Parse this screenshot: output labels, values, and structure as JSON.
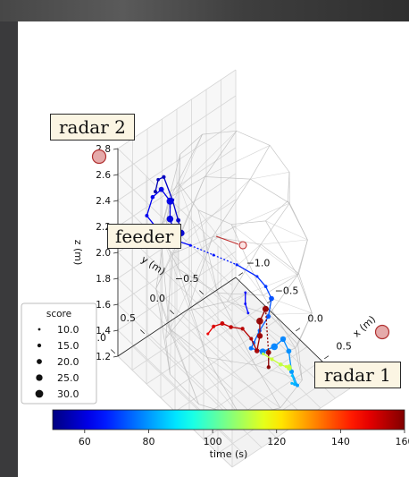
{
  "chart_data": {
    "type": "scatter",
    "projection": "3d",
    "axes": {
      "x": {
        "label": "x (m)",
        "ticks": [
          -1.0,
          -0.5,
          0.0,
          0.5,
          1.0
        ],
        "range": [
          -1.0,
          1.0
        ]
      },
      "y": {
        "label": "y (m)",
        "ticks": [
          -0.5,
          0.0,
          0.5,
          1.0
        ],
        "range": [
          -1.0,
          1.0
        ]
      },
      "z": {
        "label": "z (m)",
        "ticks": [
          1.2,
          1.4,
          1.6,
          1.8,
          2.0,
          2.2,
          2.4,
          2.6,
          2.8
        ],
        "range": [
          1.2,
          2.8
        ]
      }
    },
    "colorbar": {
      "label": "time (s)",
      "ticks": [
        60,
        80,
        100,
        120,
        140,
        160
      ],
      "range": [
        50,
        160
      ],
      "colormap": "jet"
    },
    "size_legend": {
      "title": "score",
      "values": [
        10.0,
        15.0,
        20.0,
        25.0,
        30.0
      ],
      "labels": [
        "10.0",
        "15.0",
        "20.0",
        "25.0",
        "30.0"
      ]
    },
    "callouts": {
      "radar1": "radar 1",
      "radar2": "radar 2",
      "feeder": "feeder"
    },
    "trajectories": [
      {
        "points": [
          {
            "x": -0.55,
            "y": 0.8,
            "z": 2.6,
            "t": 55,
            "score": 14
          },
          {
            "x": -0.45,
            "y": 0.85,
            "z": 2.75,
            "t": 56,
            "score": 13
          },
          {
            "x": -0.3,
            "y": 0.9,
            "z": 2.85,
            "t": 57,
            "score": 15
          },
          {
            "x": -0.2,
            "y": 0.85,
            "z": 2.7,
            "t": 58,
            "score": 14
          },
          {
            "x": -0.15,
            "y": 0.8,
            "z": 2.55,
            "t": 58,
            "score": 17
          },
          {
            "x": -0.2,
            "y": 0.7,
            "z": 2.4,
            "t": 59,
            "score": 25
          },
          {
            "x": -0.35,
            "y": 0.65,
            "z": 2.3,
            "t": 60,
            "score": 28
          },
          {
            "x": -0.5,
            "y": 0.6,
            "z": 2.35,
            "t": 60,
            "score": 26
          },
          {
            "x": -0.55,
            "y": 0.55,
            "z": 2.45,
            "t": 61,
            "score": 27
          },
          {
            "x": -0.6,
            "y": 0.65,
            "z": 2.55,
            "t": 61,
            "score": 20
          },
          {
            "x": -0.65,
            "y": 0.75,
            "z": 2.5,
            "t": 62,
            "score": 16
          },
          {
            "x": -0.7,
            "y": 0.8,
            "z": 2.35,
            "t": 62,
            "score": 14
          },
          {
            "x": -0.6,
            "y": 0.7,
            "z": 2.25,
            "t": 63,
            "score": 12
          },
          {
            "x": -0.5,
            "y": 0.6,
            "z": 2.2,
            "t": 64,
            "score": 11
          },
          {
            "x": -0.35,
            "y": 0.4,
            "z": 2.15,
            "t": 65,
            "score": 11
          },
          {
            "x": -0.15,
            "y": 0.2,
            "z": 2.1,
            "t": 66,
            "score": 11
          },
          {
            "x": 0.05,
            "y": 0.0,
            "z": 2.05,
            "t": 67,
            "score": 11
          },
          {
            "x": 0.25,
            "y": -0.15,
            "z": 2.0,
            "t": 68,
            "score": 11
          },
          {
            "x": 0.35,
            "y": -0.2,
            "z": 1.95,
            "t": 70,
            "score": 13
          },
          {
            "x": 0.45,
            "y": -0.2,
            "z": 1.9,
            "t": 72,
            "score": 20
          },
          {
            "x": 0.55,
            "y": -0.05,
            "z": 1.85,
            "t": 73,
            "score": 18
          },
          {
            "x": 0.5,
            "y": 0.05,
            "z": 1.75,
            "t": 74,
            "score": 15
          },
          {
            "x": 0.45,
            "y": 0.1,
            "z": 1.65,
            "t": 75,
            "score": 14
          },
          {
            "x": 0.35,
            "y": 0.05,
            "z": 1.55,
            "t": 76,
            "score": 17
          },
          {
            "x": 0.4,
            "y": -0.1,
            "z": 1.5,
            "t": 77,
            "score": 24
          },
          {
            "x": 0.5,
            "y": -0.2,
            "z": 1.55,
            "t": 78,
            "score": 26
          },
          {
            "x": 0.55,
            "y": -0.3,
            "z": 1.6,
            "t": 78,
            "score": 22
          },
          {
            "x": 0.65,
            "y": -0.3,
            "z": 1.55,
            "t": 79,
            "score": 20
          },
          {
            "x": 0.75,
            "y": -0.25,
            "z": 1.45,
            "t": 80,
            "score": 18
          },
          {
            "x": 0.8,
            "y": -0.3,
            "z": 1.35,
            "t": 81,
            "score": 14
          },
          {
            "x": 0.7,
            "y": -0.35,
            "z": 1.3,
            "t": 82,
            "score": 12
          },
          {
            "x": 0.6,
            "y": -0.4,
            "z": 1.25,
            "t": 83,
            "score": 11
          },
          {
            "x": 0.55,
            "y": -0.5,
            "z": 1.2,
            "t": 84,
            "score": 10
          },
          {
            "x": 0.45,
            "y": -0.55,
            "z": 1.2,
            "t": 85,
            "score": 10
          }
        ]
      },
      {
        "points": [
          {
            "x": 0.2,
            "y": 0.0,
            "z": 1.9,
            "t": 63,
            "score": 10
          },
          {
            "x": 0.25,
            "y": 0.05,
            "z": 1.85,
            "t": 64,
            "score": 10
          },
          {
            "x": 0.3,
            "y": 0.05,
            "z": 1.8,
            "t": 65,
            "score": 10
          }
        ]
      },
      {
        "points": [
          {
            "x": -0.25,
            "y": 0.2,
            "z": 1.45,
            "t": 148,
            "score": 11
          },
          {
            "x": -0.15,
            "y": 0.2,
            "z": 1.55,
            "t": 150,
            "score": 14
          },
          {
            "x": -0.05,
            "y": 0.15,
            "z": 1.6,
            "t": 152,
            "score": 17
          },
          {
            "x": 0.05,
            "y": 0.1,
            "z": 1.6,
            "t": 153,
            "score": 16
          },
          {
            "x": 0.15,
            "y": 0.0,
            "z": 1.6,
            "t": 154,
            "score": 15
          },
          {
            "x": 0.25,
            "y": -0.05,
            "z": 1.55,
            "t": 155,
            "score": 14
          },
          {
            "x": 0.35,
            "y": -0.05,
            "z": 1.5,
            "t": 156,
            "score": 19
          },
          {
            "x": 0.35,
            "y": -0.1,
            "z": 1.6,
            "t": 157,
            "score": 22
          },
          {
            "x": 0.4,
            "y": -0.05,
            "z": 1.75,
            "t": 158,
            "score": 26
          },
          {
            "x": 0.45,
            "y": -0.1,
            "z": 1.85,
            "t": 158,
            "score": 24
          },
          {
            "x": 0.45,
            "y": -0.15,
            "z": 1.5,
            "t": 159,
            "score": 20
          },
          {
            "x": 0.4,
            "y": -0.2,
            "z": 1.35,
            "t": 159,
            "score": 15
          }
        ]
      },
      {
        "points": [
          {
            "x": 0.15,
            "y": -0.35,
            "z": 1.3,
            "t": 112,
            "score": 12
          },
          {
            "x": 0.2,
            "y": -0.45,
            "z": 1.25,
            "t": 113,
            "score": 14
          },
          {
            "x": 0.25,
            "y": -0.55,
            "z": 1.2,
            "t": 112,
            "score": 16
          },
          {
            "x": 0.35,
            "y": -0.6,
            "z": 1.2,
            "t": 111,
            "score": 20
          },
          {
            "x": 0.4,
            "y": -0.55,
            "z": 1.25,
            "t": 112,
            "score": 15
          },
          {
            "x": 0.45,
            "y": -0.45,
            "z": 1.3,
            "t": 114,
            "score": 12
          }
        ]
      }
    ]
  }
}
